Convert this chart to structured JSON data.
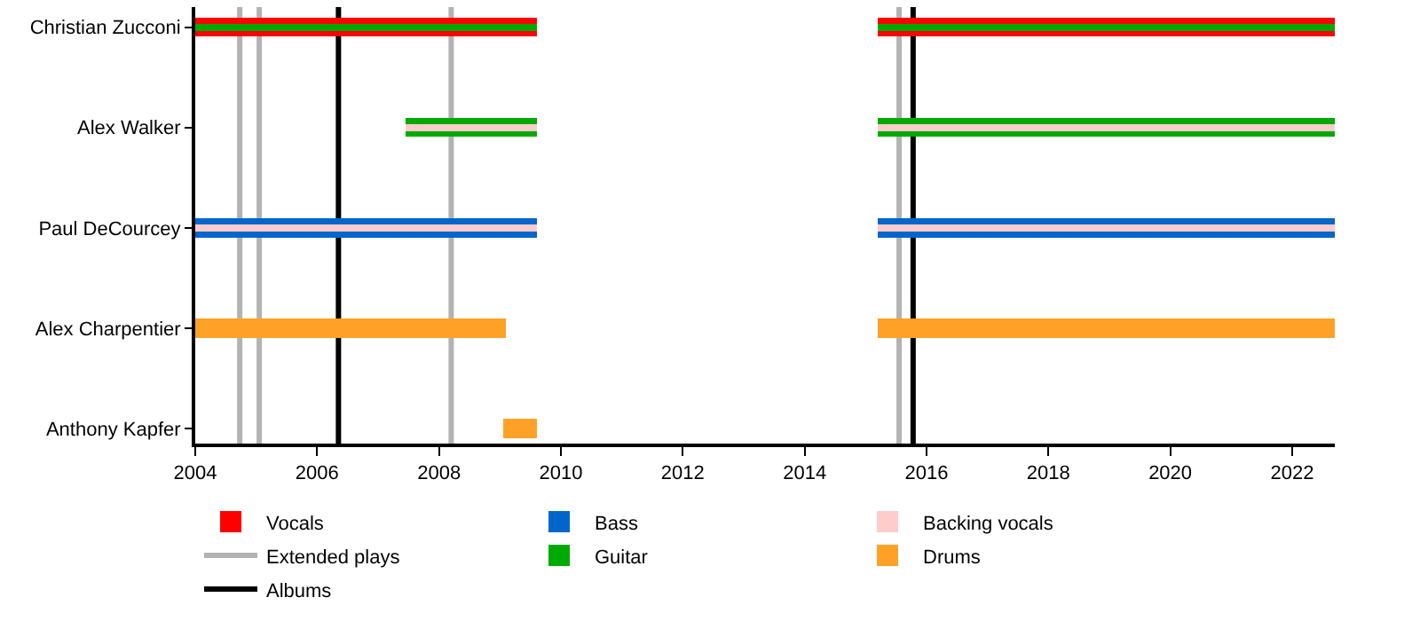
{
  "chart_data": {
    "type": "bar",
    "orientation": "horizontal",
    "categories": [
      "Christian Zucconi",
      "Alex Walker",
      "Paul DeCourcey",
      "Alex Charpentier",
      "Anthony Kapfer"
    ],
    "series": [
      {
        "name": "Vocals",
        "color": "#ff0000",
        "base": [
          2004,
          null,
          null,
          null,
          null
        ],
        "values": [
          5.6,
          null,
          null,
          null,
          null
        ]
      },
      {
        "name": "Guitar",
        "color": "#00aa00",
        "base": [
          2004,
          2007.45,
          null,
          null,
          null
        ],
        "values": [
          5.6,
          2.15,
          null,
          null,
          null
        ]
      },
      {
        "name": "Bass",
        "color": "#0066cc",
        "base": [
          null,
          null,
          2004,
          null,
          null
        ],
        "values": [
          null,
          null,
          5.6,
          null,
          null
        ]
      },
      {
        "name": "Drums",
        "color": "#ffa126",
        "base": [
          null,
          null,
          null,
          2004,
          2009.05
        ],
        "values": [
          null,
          null,
          null,
          5.1,
          0.55
        ]
      },
      {
        "name": "Backing vocals",
        "color": "#ffcccc",
        "base": [
          null,
          2007.45,
          2004,
          null,
          null
        ],
        "values": [
          null,
          2.15,
          5.6,
          null,
          null
        ]
      },
      {
        "color": "#ff0000",
        "base": [
          2015.2,
          null,
          null,
          null,
          null
        ],
        "values": [
          7.5,
          null,
          null,
          null,
          null
        ]
      },
      {
        "color": "#00aa00",
        "base": [
          2015.2,
          2015.2,
          null,
          null,
          null
        ],
        "values": [
          7.5,
          7.5,
          null,
          null,
          null
        ]
      },
      {
        "color": "#0066cc",
        "base": [
          null,
          null,
          2015.2,
          null,
          null
        ],
        "values": [
          null,
          null,
          7.5,
          null,
          null
        ]
      },
      {
        "color": "#ffa126",
        "base": [
          null,
          null,
          null,
          2015.2,
          null
        ],
        "values": [
          null,
          null,
          null,
          7.5,
          null
        ]
      },
      {
        "color": "#ffcccc",
        "base": [
          null,
          2015.2,
          2015.2,
          null,
          null
        ],
        "values": [
          null,
          7.5,
          7.5,
          null,
          null
        ]
      }
    ],
    "ref_lines": [
      {
        "axis": "x",
        "value": 2006.35,
        "label": "Albums",
        "color": "#000000"
      },
      {
        "axis": "x",
        "value": 2015.78,
        "color": "#000000"
      },
      {
        "axis": "x",
        "value": 2004.73,
        "label": "Extended plays",
        "color": "#b3b3b3"
      },
      {
        "axis": "x",
        "value": 2005.05,
        "color": "#b3b3b3"
      },
      {
        "axis": "x",
        "value": 2008.2,
        "color": "#b3b3b3"
      },
      {
        "axis": "x",
        "value": 2015.55,
        "color": "#b3b3b3"
      }
    ],
    "xlim": [
      2004,
      2022.7
    ],
    "xticks": [
      2004,
      2006,
      2008,
      2010,
      2012,
      2014,
      2016,
      2018,
      2020,
      2022
    ],
    "grid": false,
    "legend": "bottom"
  }
}
